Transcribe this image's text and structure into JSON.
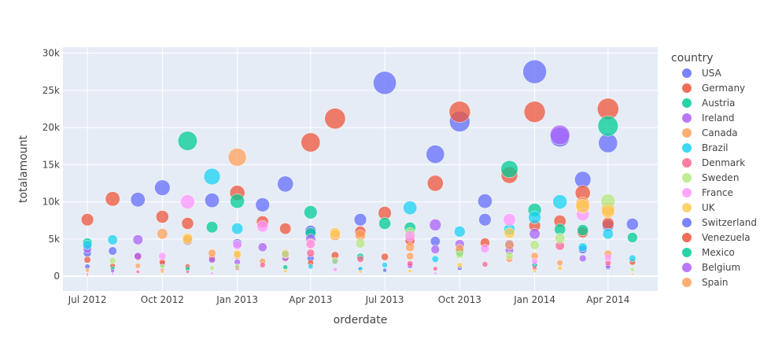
{
  "chart_data": {
    "type": "scatter",
    "xlabel": "orderdate",
    "ylabel": "totalamount",
    "legend_title": "country",
    "legend_position": "right",
    "grid": true,
    "x_range": [
      "2012-06-01",
      "2014-06-01"
    ],
    "y_range": [
      -2000,
      30800
    ],
    "x_ticks": [
      {
        "date": "2012-07-01",
        "label": "Jul 2012"
      },
      {
        "date": "2012-10-01",
        "label": "Oct 2012"
      },
      {
        "date": "2013-01-01",
        "label": "Jan 2013"
      },
      {
        "date": "2013-04-01",
        "label": "Apr 2013"
      },
      {
        "date": "2013-07-01",
        "label": "Jul 2013"
      },
      {
        "date": "2013-10-01",
        "label": "Oct 2013"
      },
      {
        "date": "2014-01-01",
        "label": "Jan 2014"
      },
      {
        "date": "2014-04-01",
        "label": "Apr 2014"
      }
    ],
    "y_ticks": [
      {
        "value": 0,
        "label": "0"
      },
      {
        "value": 5000,
        "label": "5k"
      },
      {
        "value": 10000,
        "label": "10k"
      },
      {
        "value": 15000,
        "label": "15k"
      },
      {
        "value": 20000,
        "label": "20k"
      },
      {
        "value": 25000,
        "label": "25k"
      },
      {
        "value": 30000,
        "label": "30k"
      }
    ],
    "series": [
      {
        "name": "USA",
        "color": "#636efa",
        "points": [
          [
            "2012-07-01",
            1300
          ],
          [
            "2012-08-01",
            3400
          ],
          [
            "2012-09-01",
            10300
          ],
          [
            "2012-10-01",
            11900
          ],
          [
            "2012-11-01",
            4800
          ],
          [
            "2012-12-01",
            10200
          ],
          [
            "2013-01-01",
            4400
          ],
          [
            "2013-02-01",
            9600
          ],
          [
            "2013-03-01",
            12400
          ],
          [
            "2013-04-01",
            6100
          ],
          [
            "2013-05-01",
            2000
          ],
          [
            "2013-06-01",
            7600
          ],
          [
            "2013-07-01",
            26000
          ],
          [
            "2013-08-01",
            1500
          ],
          [
            "2013-09-01",
            16400
          ],
          [
            "2013-10-01",
            20800
          ],
          [
            "2013-11-01",
            10100
          ],
          [
            "2013-12-01",
            4300
          ],
          [
            "2014-01-01",
            27500
          ],
          [
            "2014-02-01",
            18700
          ],
          [
            "2014-03-01",
            13000
          ],
          [
            "2014-04-01",
            17900
          ],
          [
            "2014-05-01",
            7000
          ],
          [
            "2012-07-01",
            3100
          ],
          [
            "2012-10-01",
            1600
          ],
          [
            "2013-01-01",
            1200
          ],
          [
            "2013-04-01",
            2400
          ],
          [
            "2013-07-01",
            800
          ],
          [
            "2013-09-01",
            4700
          ],
          [
            "2013-10-01",
            1100
          ],
          [
            "2013-11-01",
            7600
          ],
          [
            "2014-01-01",
            1600
          ],
          [
            "2014-03-01",
            3600
          ],
          [
            "2014-04-01",
            6800
          ],
          [
            "2014-04-01",
            1200
          ]
        ]
      },
      {
        "name": "Germany",
        "color": "#ef553b",
        "points": [
          [
            "2012-07-01",
            7600
          ],
          [
            "2012-07-01",
            2200
          ],
          [
            "2012-08-01",
            10400
          ],
          [
            "2012-08-01",
            1400
          ],
          [
            "2012-09-01",
            2600
          ],
          [
            "2012-10-01",
            8000
          ],
          [
            "2012-10-01",
            1900
          ],
          [
            "2012-11-01",
            7100
          ],
          [
            "2012-11-01",
            1300
          ],
          [
            "2012-12-01",
            2400
          ],
          [
            "2013-01-01",
            11200
          ],
          [
            "2013-02-01",
            7300
          ],
          [
            "2013-03-01",
            6400
          ],
          [
            "2013-03-01",
            2400
          ],
          [
            "2013-04-01",
            18000
          ],
          [
            "2013-04-01",
            1800
          ],
          [
            "2013-05-01",
            21200
          ],
          [
            "2013-05-01",
            2800
          ],
          [
            "2013-06-01",
            6000
          ],
          [
            "2013-07-01",
            8500
          ],
          [
            "2013-07-01",
            2600
          ],
          [
            "2013-08-01",
            4800
          ],
          [
            "2013-09-01",
            12500
          ],
          [
            "2013-10-01",
            22100
          ],
          [
            "2013-10-01",
            3400
          ],
          [
            "2013-11-01",
            4500
          ],
          [
            "2013-12-01",
            13600
          ],
          [
            "2014-01-01",
            22100
          ],
          [
            "2014-01-01",
            6800
          ],
          [
            "2014-02-01",
            7400
          ],
          [
            "2014-03-01",
            11200
          ],
          [
            "2014-03-01",
            5900
          ],
          [
            "2014-04-01",
            22500
          ],
          [
            "2014-04-01",
            7100
          ],
          [
            "2014-05-01",
            1900
          ]
        ]
      },
      {
        "name": "Austria",
        "color": "#00cc96",
        "points": [
          [
            "2012-07-01",
            4500
          ],
          [
            "2012-08-01",
            1000
          ],
          [
            "2012-11-01",
            18200
          ],
          [
            "2012-11-01",
            1000
          ],
          [
            "2012-12-01",
            6600
          ],
          [
            "2013-01-01",
            10100
          ],
          [
            "2013-03-01",
            1200
          ],
          [
            "2013-04-01",
            5800
          ],
          [
            "2013-04-01",
            8600
          ],
          [
            "2013-06-01",
            2600
          ],
          [
            "2013-07-01",
            7100
          ],
          [
            "2013-08-01",
            6500
          ],
          [
            "2013-10-01",
            3200
          ],
          [
            "2013-12-01",
            14400
          ],
          [
            "2014-01-01",
            8900
          ],
          [
            "2014-01-01",
            1500
          ],
          [
            "2014-02-01",
            6300
          ],
          [
            "2014-03-01",
            6200
          ],
          [
            "2014-04-01",
            20200
          ],
          [
            "2014-05-01",
            5200
          ]
        ]
      },
      {
        "name": "Ireland",
        "color": "#ab63fa",
        "points": [
          [
            "2012-07-01",
            3700
          ],
          [
            "2012-08-01",
            700
          ],
          [
            "2012-09-01",
            4900
          ],
          [
            "2012-09-01",
            2700
          ],
          [
            "2012-12-01",
            2200
          ],
          [
            "2013-01-01",
            1900
          ],
          [
            "2013-02-01",
            3900
          ],
          [
            "2013-03-01",
            2500
          ],
          [
            "2013-04-01",
            5000
          ],
          [
            "2013-06-01",
            1000
          ],
          [
            "2013-08-01",
            1400
          ],
          [
            "2013-09-01",
            6900
          ],
          [
            "2013-09-01",
            3600
          ],
          [
            "2013-10-01",
            4300
          ],
          [
            "2013-12-01",
            3500
          ],
          [
            "2014-01-01",
            5700
          ],
          [
            "2014-02-01",
            19000
          ],
          [
            "2014-03-01",
            2400
          ],
          [
            "2014-04-01",
            1400
          ]
        ]
      },
      {
        "name": "Canada",
        "color": "#ffa15a",
        "points": [
          [
            "2012-07-01",
            800
          ],
          [
            "2012-09-01",
            1400
          ],
          [
            "2012-10-01",
            5700
          ],
          [
            "2012-11-01",
            4900
          ],
          [
            "2012-12-01",
            3100
          ],
          [
            "2013-01-01",
            16000
          ],
          [
            "2013-01-01",
            2800
          ],
          [
            "2013-02-01",
            2000
          ],
          [
            "2013-03-01",
            3100
          ],
          [
            "2013-04-01",
            4400
          ],
          [
            "2013-05-01",
            5500
          ],
          [
            "2013-06-01",
            5500
          ],
          [
            "2013-08-01",
            3900
          ],
          [
            "2013-08-01",
            2700
          ],
          [
            "2013-10-01",
            3700
          ],
          [
            "2013-12-01",
            4200
          ],
          [
            "2013-12-01",
            2300
          ],
          [
            "2014-01-01",
            2700
          ],
          [
            "2014-02-01",
            1800
          ],
          [
            "2014-03-01",
            9700
          ],
          [
            "2014-04-01",
            9000
          ],
          [
            "2014-04-01",
            3000
          ]
        ]
      },
      {
        "name": "Brazil",
        "color": "#19d3f3",
        "points": [
          [
            "2012-07-01",
            4200
          ],
          [
            "2012-08-01",
            4900
          ],
          [
            "2012-12-01",
            13400
          ],
          [
            "2013-01-01",
            6400
          ],
          [
            "2013-04-01",
            1300
          ],
          [
            "2013-06-01",
            1000
          ],
          [
            "2013-07-01",
            1500
          ],
          [
            "2013-08-01",
            9200
          ],
          [
            "2013-09-01",
            2300
          ],
          [
            "2013-10-01",
            6000
          ],
          [
            "2013-12-01",
            6300
          ],
          [
            "2014-01-01",
            7900
          ],
          [
            "2014-02-01",
            10000
          ],
          [
            "2014-03-01",
            3900
          ],
          [
            "2014-04-01",
            5700
          ],
          [
            "2014-05-01",
            2400
          ]
        ]
      },
      {
        "name": "Denmark",
        "color": "#ff6692",
        "points": [
          [
            "2012-07-01",
            300
          ],
          [
            "2012-09-01",
            600
          ],
          [
            "2012-10-01",
            800
          ],
          [
            "2012-11-01",
            600
          ],
          [
            "2013-01-01",
            1100
          ],
          [
            "2013-02-01",
            1500
          ],
          [
            "2013-03-01",
            2900
          ],
          [
            "2013-04-01",
            3100
          ],
          [
            "2013-06-01",
            2300
          ],
          [
            "2013-08-01",
            1700
          ],
          [
            "2013-09-01",
            1000
          ],
          [
            "2013-11-01",
            1600
          ],
          [
            "2014-01-01",
            1100
          ],
          [
            "2014-02-01",
            4100
          ],
          [
            "2014-04-01",
            1800
          ]
        ]
      },
      {
        "name": "Sweden",
        "color": "#b6e880",
        "points": [
          [
            "2012-08-01",
            2100
          ],
          [
            "2012-10-01",
            1300
          ],
          [
            "2012-12-01",
            1100
          ],
          [
            "2013-01-01",
            1300
          ],
          [
            "2013-03-01",
            3000
          ],
          [
            "2013-05-01",
            2100
          ],
          [
            "2013-06-01",
            4400
          ],
          [
            "2013-08-01",
            5800
          ],
          [
            "2013-10-01",
            2900
          ],
          [
            "2013-12-01",
            2800
          ],
          [
            "2014-01-01",
            4200
          ],
          [
            "2014-02-01",
            5100
          ],
          [
            "2014-04-01",
            10100
          ],
          [
            "2014-05-01",
            900
          ]
        ]
      },
      {
        "name": "France",
        "color": "#ff97ff",
        "points": [
          [
            "2012-08-01",
            300
          ],
          [
            "2012-10-01",
            2700
          ],
          [
            "2012-11-01",
            10000
          ],
          [
            "2012-12-01",
            400
          ],
          [
            "2013-01-01",
            4200
          ],
          [
            "2013-02-01",
            6700
          ],
          [
            "2013-04-01",
            4300
          ],
          [
            "2013-05-01",
            900
          ],
          [
            "2013-08-01",
            5400
          ],
          [
            "2013-09-01",
            400
          ],
          [
            "2013-11-01",
            3700
          ],
          [
            "2013-12-01",
            7600
          ],
          [
            "2014-01-01",
            2000
          ],
          [
            "2014-03-01",
            8300
          ],
          [
            "2014-04-01",
            2500
          ]
        ]
      },
      {
        "name": "UK",
        "color": "#fecb52",
        "points": [
          [
            "2012-07-01",
            100
          ],
          [
            "2012-10-01",
            600
          ],
          [
            "2012-11-01",
            5100
          ],
          [
            "2013-01-01",
            3000
          ],
          [
            "2013-03-01",
            700
          ],
          [
            "2013-05-01",
            5800
          ],
          [
            "2013-06-01",
            600
          ],
          [
            "2013-08-01",
            700
          ],
          [
            "2013-10-01",
            1500
          ],
          [
            "2013-12-01",
            5800
          ],
          [
            "2014-01-01",
            700
          ],
          [
            "2014-02-01",
            1100
          ],
          [
            "2014-03-01",
            9400
          ],
          [
            "2014-04-01",
            8700
          ],
          [
            "2014-05-01",
            300
          ]
        ]
      }
    ],
    "legend_only": [
      {
        "name": "Switzerland",
        "color": "#636efa"
      },
      {
        "name": "Venezuela",
        "color": "#ef553b"
      },
      {
        "name": "Mexico",
        "color": "#00cc96"
      },
      {
        "name": "Belgium",
        "color": "#ab63fa"
      },
      {
        "name": "Spain",
        "color": "#ffa15a"
      }
    ]
  }
}
